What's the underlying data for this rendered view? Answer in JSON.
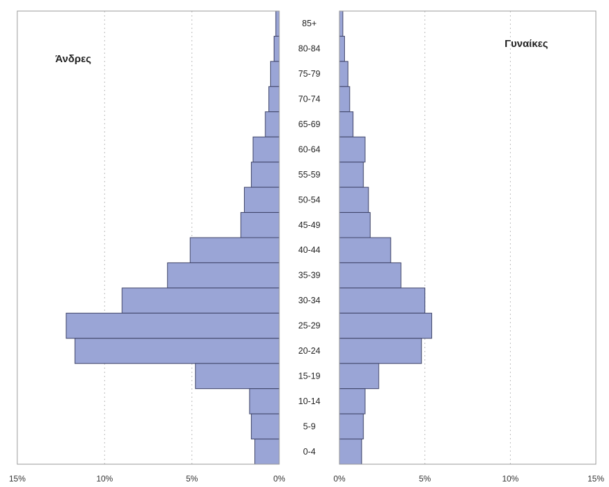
{
  "chart_data": {
    "type": "bar",
    "orientation": "horizontal",
    "categories": [
      "85+",
      "80-84",
      "75-79",
      "70-74",
      "65-69",
      "60-64",
      "55-59",
      "50-54",
      "45-49",
      "40-44",
      "35-39",
      "30-34",
      "25-29",
      "20-24",
      "15-19",
      "10-14",
      "5-9",
      "0-4"
    ],
    "series": [
      {
        "name": "Άνδρες",
        "side": "left",
        "values": [
          0.2,
          0.3,
          0.5,
          0.6,
          0.8,
          1.5,
          1.6,
          2.0,
          2.2,
          5.1,
          6.4,
          9.0,
          12.2,
          11.7,
          4.8,
          1.7,
          1.6,
          1.4
        ]
      },
      {
        "name": "Γυναίκες",
        "side": "right",
        "values": [
          0.2,
          0.3,
          0.5,
          0.6,
          0.8,
          1.5,
          1.4,
          1.7,
          1.8,
          3.0,
          3.6,
          5.0,
          5.4,
          4.8,
          2.3,
          1.5,
          1.4,
          1.3
        ]
      }
    ],
    "xlim": [
      0,
      15
    ],
    "xticks": [
      0,
      5,
      10,
      15
    ],
    "xtick_labels_left": [
      "15%",
      "10%",
      "5%",
      "0%"
    ],
    "xtick_labels_right": [
      "0%",
      "5%",
      "10%",
      "15%"
    ],
    "grid": true,
    "colors": {
      "bar_fill": "#9aa5d6",
      "bar_stroke": "#3d4266",
      "grid": "#bbbbbb",
      "frame": "#999999"
    }
  }
}
